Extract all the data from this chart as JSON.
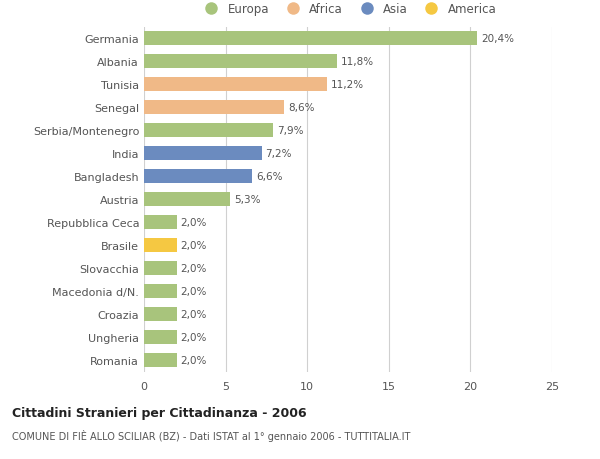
{
  "countries": [
    "Germania",
    "Albania",
    "Tunisia",
    "Senegal",
    "Serbia/Montenegro",
    "India",
    "Bangladesh",
    "Austria",
    "Repubblica Ceca",
    "Brasile",
    "Slovacchia",
    "Macedonia d/N.",
    "Croazia",
    "Ungheria",
    "Romania"
  ],
  "values": [
    20.4,
    11.8,
    11.2,
    8.6,
    7.9,
    7.2,
    6.6,
    5.3,
    2.0,
    2.0,
    2.0,
    2.0,
    2.0,
    2.0,
    2.0
  ],
  "labels": [
    "20,4%",
    "11,8%",
    "11,2%",
    "8,6%",
    "7,9%",
    "7,2%",
    "6,6%",
    "5,3%",
    "2,0%",
    "2,0%",
    "2,0%",
    "2,0%",
    "2,0%",
    "2,0%",
    "2,0%"
  ],
  "continents": [
    "Europa",
    "Europa",
    "Africa",
    "Africa",
    "Europa",
    "Asia",
    "Asia",
    "Europa",
    "Europa",
    "America",
    "Europa",
    "Europa",
    "Europa",
    "Europa",
    "Europa"
  ],
  "colors": {
    "Europa": "#a8c47c",
    "Africa": "#f0b987",
    "Asia": "#6b8bbf",
    "America": "#f5c842"
  },
  "legend_order": [
    "Europa",
    "Africa",
    "Asia",
    "America"
  ],
  "title_bold": "Cittadini Stranieri per Cittadinanza - 2006",
  "subtitle": "COMUNE DI FIÈ ALLO SCILIAR (BZ) - Dati ISTAT al 1° gennaio 2006 - TUTTITALIA.IT",
  "xlim": [
    0,
    25
  ],
  "xticks": [
    0,
    5,
    10,
    15,
    20,
    25
  ],
  "bg_color": "#ffffff",
  "grid_color": "#d0d0d0",
  "bar_height": 0.6
}
